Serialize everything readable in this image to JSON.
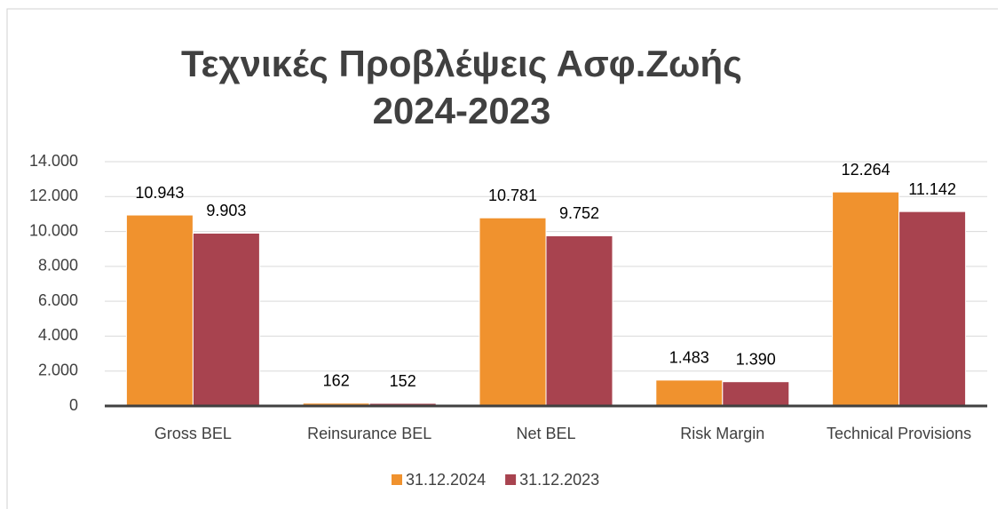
{
  "chart_data": {
    "type": "bar",
    "title": [
      "Τεχνικές Προβλέψεις Ασφ.Ζωής",
      "2024-2023"
    ],
    "categories": [
      "Gross BEL",
      "Reinsurance BEL",
      "Net BEL",
      "Risk Margin",
      "Technical Provisions"
    ],
    "series": [
      {
        "name": "31.12.2024",
        "color": "#f0922e",
        "values": [
          10943,
          162,
          10781,
          1483,
          12264
        ],
        "value_labels": [
          "10.943",
          "162",
          "10.781",
          "1.483",
          "12.264"
        ]
      },
      {
        "name": "31.12.2023",
        "color": "#a8434f",
        "values": [
          9903,
          152,
          9752,
          1390,
          11142
        ],
        "value_labels": [
          "9.903",
          "152",
          "9.752",
          "1.390",
          "11.142"
        ]
      }
    ],
    "ylim": [
      0,
      14000
    ],
    "yticks": [
      0,
      {
        "value": 2000,
        "label": "2.000"
      },
      {
        "value": 4000,
        "label": "4.000"
      },
      {
        "value": 6000,
        "label": "6.000"
      },
      {
        "value": 8000,
        "label": "8.000"
      },
      {
        "value": 10000,
        "label": "10.000"
      },
      {
        "value": 12000,
        "label": "12.000"
      },
      {
        "value": 14000,
        "label": "14.000"
      }
    ],
    "grid": true,
    "legend": "bottom"
  }
}
